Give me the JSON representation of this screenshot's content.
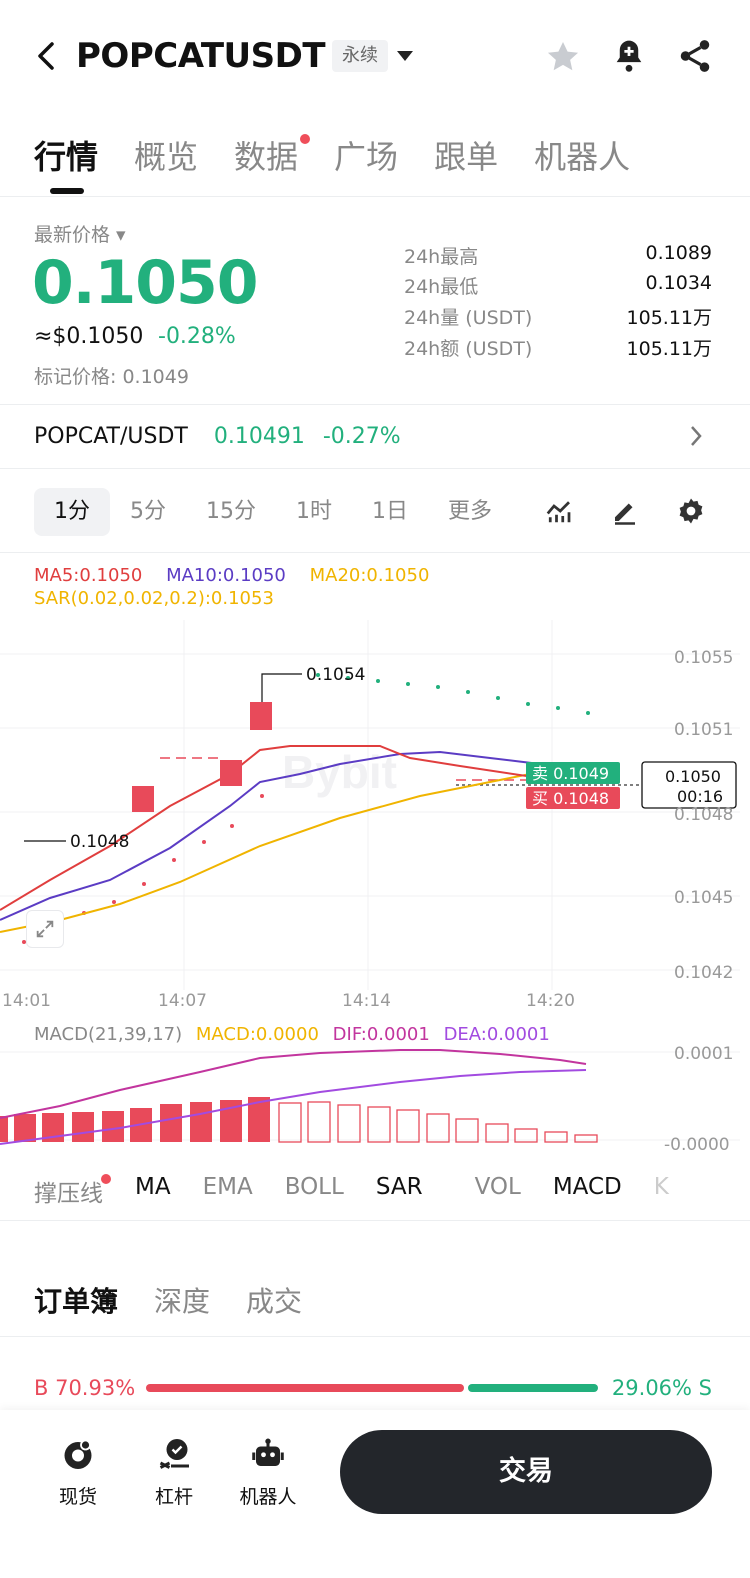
{
  "header": {
    "title": "POPCATUSDT",
    "tag": "永续",
    "back_icon": "chevron-left-icon",
    "icons": [
      "star-icon",
      "bell-plus-icon",
      "share-icon"
    ]
  },
  "tabs": [
    {
      "label": "行情",
      "active": true
    },
    {
      "label": "概览"
    },
    {
      "label": "数据",
      "dot": true
    },
    {
      "label": "广场"
    },
    {
      "label": "跟单"
    },
    {
      "label": "机器人"
    }
  ],
  "price": {
    "label": "最新价格",
    "last": "0.1050",
    "usd": "≈$0.1050",
    "change": "-0.28%",
    "mark": "标记价格: 0.1049"
  },
  "stats": [
    {
      "k": "24h最高",
      "v": "0.1089"
    },
    {
      "k": "24h最低",
      "v": "0.1034"
    },
    {
      "k": "24h量 (USDT)",
      "v": "105.11万"
    },
    {
      "k": "24h额 (USDT)",
      "v": "105.11万"
    }
  ],
  "spot": {
    "pair": "POPCAT/USDT",
    "price": "0.10491",
    "change": "-0.27%"
  },
  "intervals": [
    {
      "label": "1分",
      "active": true
    },
    {
      "label": "5分"
    },
    {
      "label": "15分"
    },
    {
      "label": "1时"
    },
    {
      "label": "1日"
    },
    {
      "label": "更多"
    }
  ],
  "legend": {
    "ma5": "MA5:0.1050",
    "ma10": "MA10:0.1050",
    "ma20": "MA20:0.1050",
    "sar": "SAR(0.02,0.02,0.2):0.1053"
  },
  "colors": {
    "green": "#22b07d",
    "red": "#e84a5a",
    "ma5": "#e03e3e",
    "ma10": "#5b3cc4",
    "ma20": "#f0b400",
    "sar": "#e84a5a"
  },
  "chart_data": {
    "type": "line",
    "y_ticks": [
      "0.1055",
      "0.1051",
      "0.1048",
      "0.1045",
      "0.1042"
    ],
    "x_ticks": [
      "14:01",
      "14:07",
      "14:14",
      "14:20"
    ],
    "annotations": {
      "high": "0.1054",
      "low": "0.1048"
    },
    "sell_tag": {
      "label": "卖",
      "price": "0.1049"
    },
    "buy_tag": {
      "label": "买",
      "price": "0.1048"
    },
    "last_tag": {
      "price": "0.1050",
      "countdown": "00:16"
    },
    "watermark": "Bybit"
  },
  "macd": {
    "title": "MACD(21,39,17)",
    "macd": "MACD:0.0000",
    "dif": "DIF:0.0001",
    "dea": "DEA:0.0001",
    "y_ticks": [
      "0.0001",
      "-0.0000"
    ]
  },
  "indicators": [
    {
      "label": "撑压线",
      "dot": true
    },
    {
      "label": "MA",
      "on": true
    },
    {
      "label": "EMA"
    },
    {
      "label": "BOLL"
    },
    {
      "label": "SAR",
      "on": true
    },
    {
      "label": "VOL"
    },
    {
      "label": "MACD",
      "on": true
    },
    {
      "label": "K"
    }
  ],
  "orderbook": {
    "tabs": [
      {
        "label": "订单簿",
        "on": true
      },
      {
        "label": "深度"
      },
      {
        "label": "成交"
      }
    ],
    "buy_ratio": "B 70.93%",
    "sell_ratio": "29.06% S",
    "buy_fraction": 0.7093
  },
  "bottom_nav": [
    {
      "label": "现货",
      "icon": "spot-icon"
    },
    {
      "label": "杠杆",
      "icon": "leverage-icon"
    },
    {
      "label": "机器人",
      "icon": "robot-icon"
    }
  ],
  "trade_button": "交易"
}
